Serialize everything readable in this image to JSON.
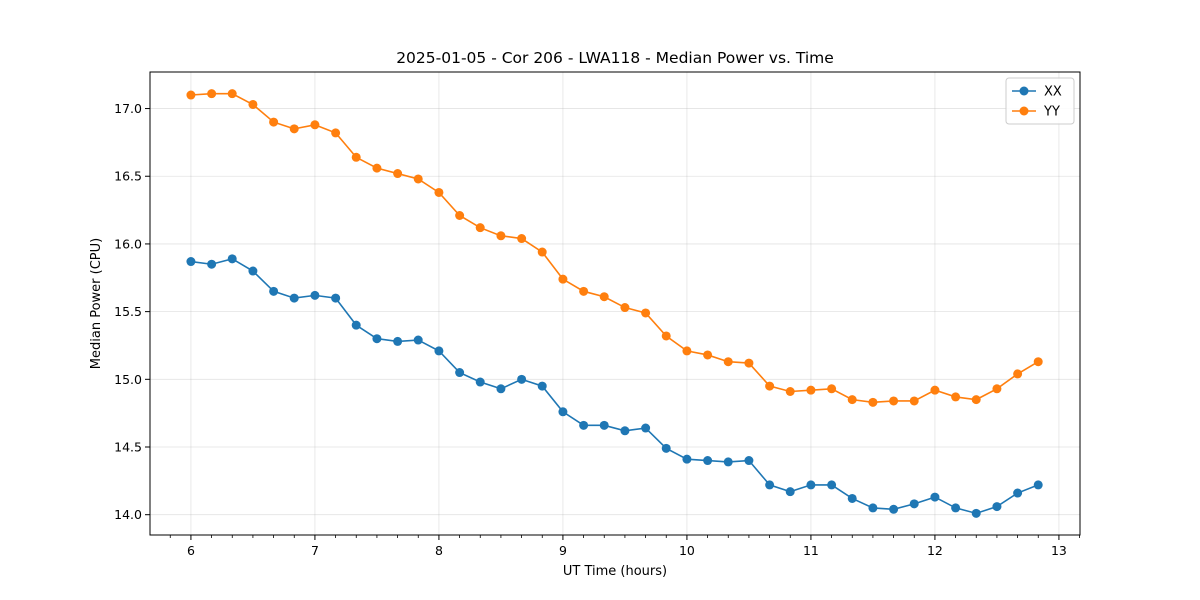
{
  "chart_data": {
    "type": "line",
    "title": "2025-01-05 - Cor 206 - LWA118 - Median Power vs. Time",
    "xlabel": "UT Time (hours)",
    "ylabel": "Median Power (CPU)",
    "xlim": [
      5.67,
      13.17
    ],
    "ylim": [
      13.85,
      17.27
    ],
    "xticks": [
      6,
      7,
      8,
      9,
      10,
      11,
      12,
      13
    ],
    "xtick_labels": [
      "6",
      "7",
      "8",
      "9",
      "10",
      "11",
      "12",
      "13"
    ],
    "yticks": [
      14.0,
      14.5,
      15.0,
      15.5,
      16.0,
      16.5,
      17.0
    ],
    "ytick_labels": [
      "14.0",
      "14.5",
      "15.0",
      "15.5",
      "16.0",
      "16.5",
      "17.0"
    ],
    "grid": true,
    "legend_position": "top-right",
    "x": [
      6.0,
      6.167,
      6.333,
      6.5,
      6.667,
      6.833,
      7.0,
      7.167,
      7.333,
      7.5,
      7.667,
      7.833,
      8.0,
      8.167,
      8.333,
      8.5,
      8.667,
      8.833,
      9.0,
      9.167,
      9.333,
      9.5,
      9.667,
      9.833,
      10.0,
      10.167,
      10.333,
      10.5,
      10.667,
      10.833,
      11.0,
      11.167,
      11.333,
      11.5,
      11.667,
      11.833,
      12.0,
      12.167,
      12.333,
      12.5,
      12.667,
      12.833
    ],
    "series": [
      {
        "name": "XX",
        "color": "#1f77b4",
        "values": [
          15.87,
          15.85,
          15.89,
          15.8,
          15.65,
          15.6,
          15.62,
          15.6,
          15.4,
          15.3,
          15.28,
          15.29,
          15.21,
          15.05,
          14.98,
          14.93,
          15.0,
          14.95,
          14.76,
          14.66,
          14.66,
          14.62,
          14.64,
          14.49,
          14.41,
          14.4,
          14.39,
          14.4,
          14.22,
          14.17,
          14.22,
          14.22,
          14.12,
          14.05,
          14.04,
          14.08,
          14.13,
          14.05,
          14.01,
          14.06,
          14.16,
          14.22
        ]
      },
      {
        "name": "YY",
        "color": "#ff7f0e",
        "values": [
          17.1,
          17.11,
          17.11,
          17.03,
          16.9,
          16.85,
          16.88,
          16.82,
          16.64,
          16.56,
          16.52,
          16.48,
          16.38,
          16.21,
          16.12,
          16.06,
          16.04,
          15.94,
          15.74,
          15.65,
          15.61,
          15.53,
          15.49,
          15.32,
          15.21,
          15.18,
          15.13,
          15.12,
          14.95,
          14.91,
          14.92,
          14.93,
          14.85,
          14.83,
          14.84,
          14.84,
          14.92,
          14.87,
          14.85,
          14.93,
          15.04,
          15.13
        ]
      }
    ]
  }
}
